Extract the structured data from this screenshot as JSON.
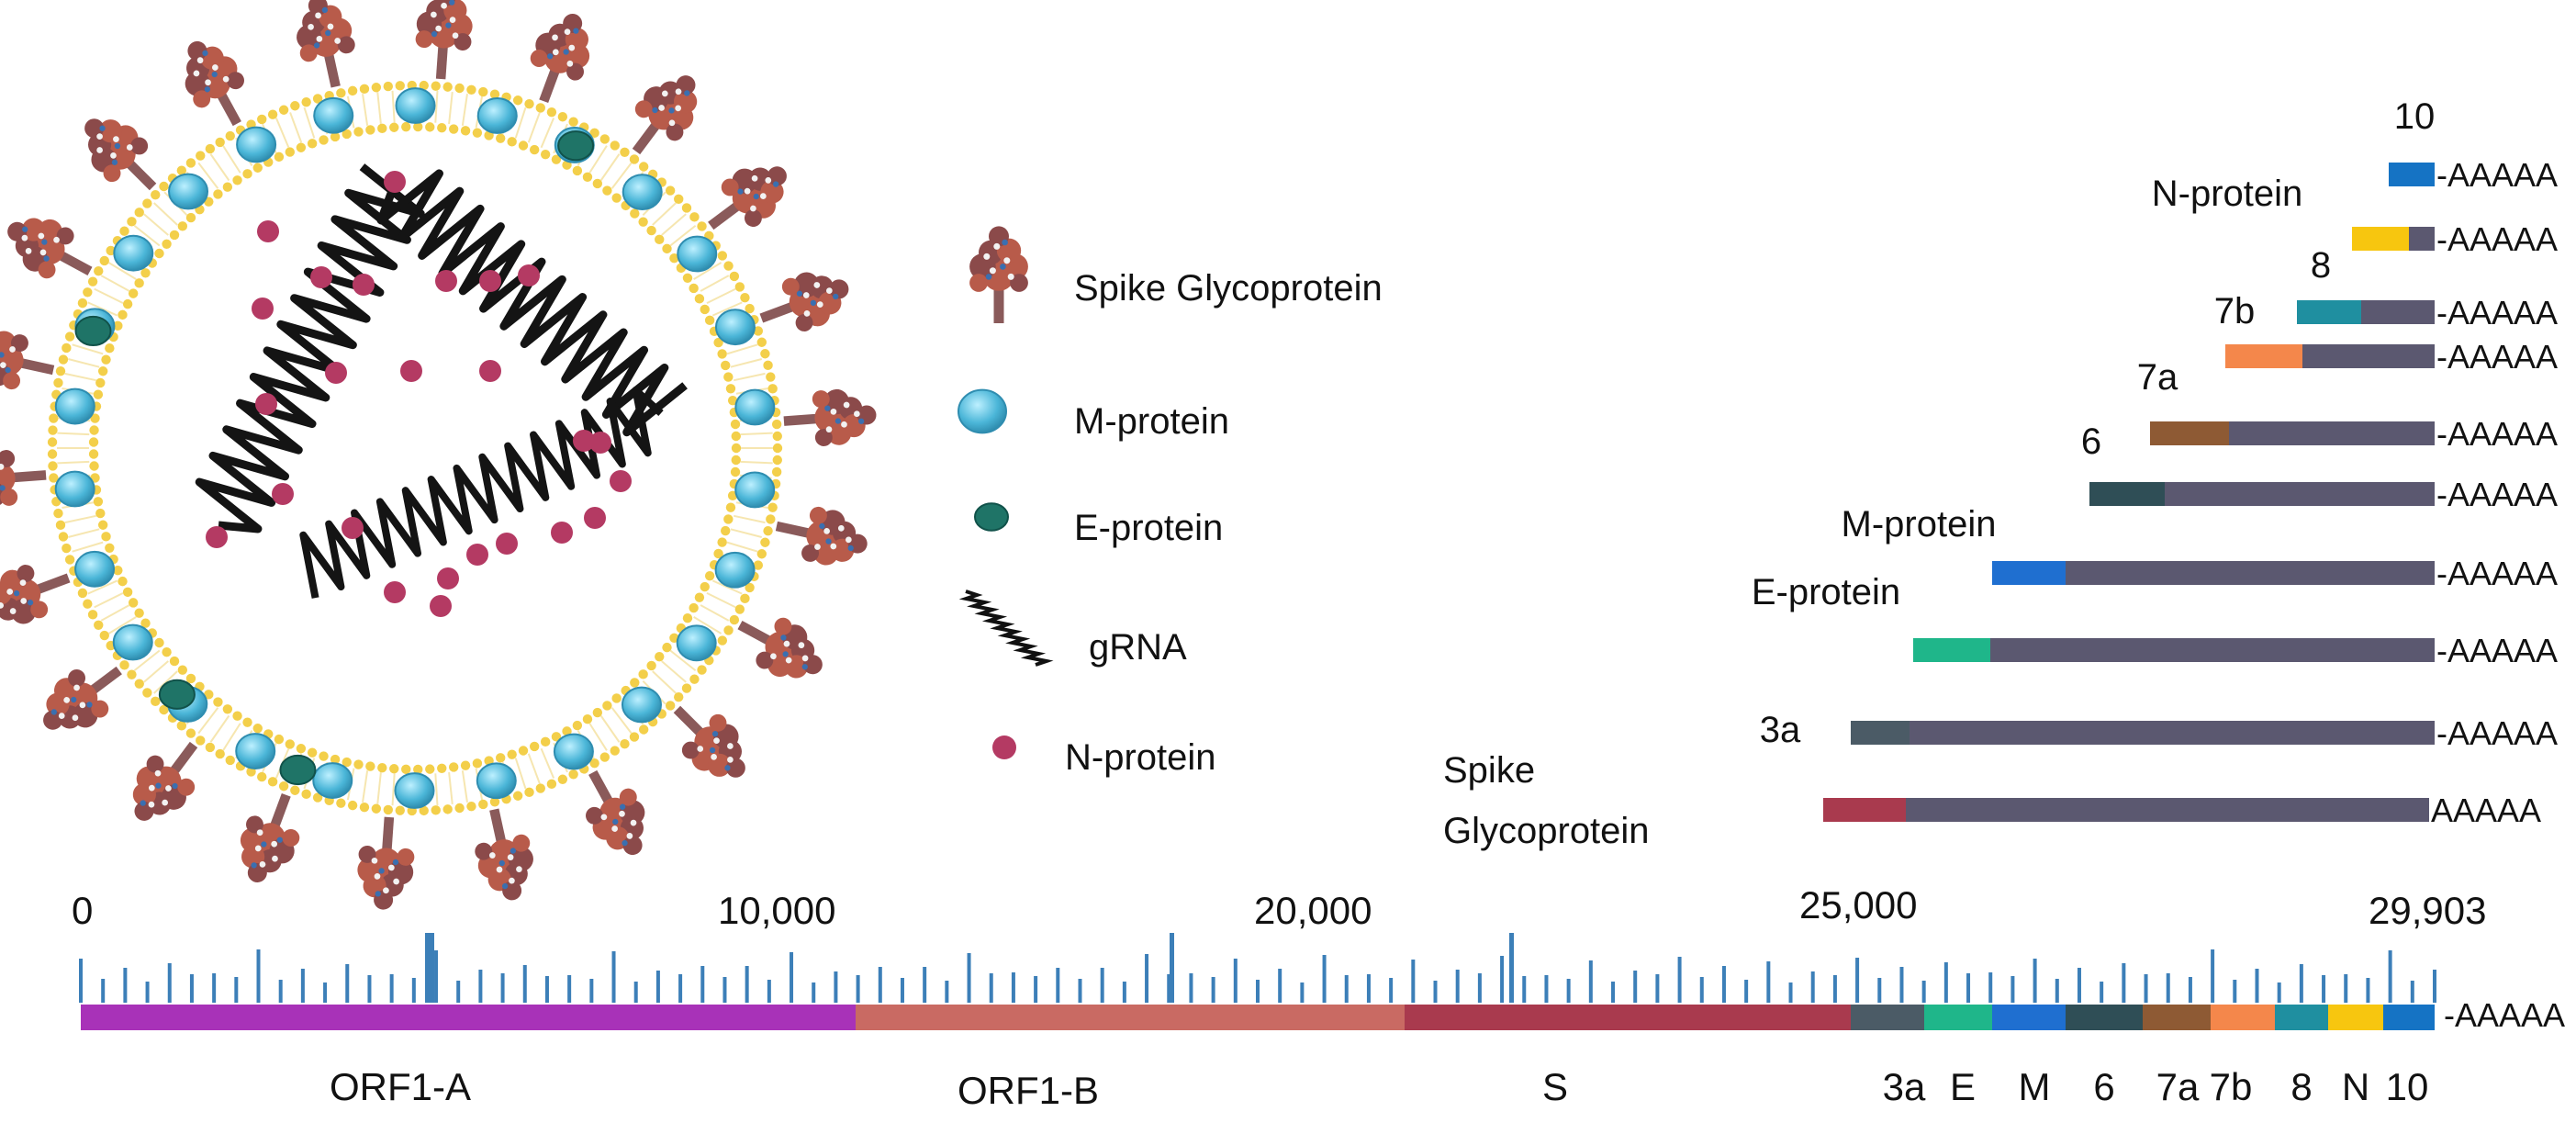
{
  "legend": {
    "items": [
      {
        "id": "spike",
        "label": "Spike Glycoprotein"
      },
      {
        "id": "mprotein",
        "label": "M-protein"
      },
      {
        "id": "eprotein",
        "label": "E-protein"
      },
      {
        "id": "grna",
        "label": "gRNA"
      },
      {
        "id": "nprotein",
        "label": "N-protein"
      }
    ]
  },
  "colors": {
    "orf1a": "#a832b8",
    "orf1b": "#c96a63",
    "s": "#a93a4e",
    "a3": "#4b5b66",
    "e": "#1fb68a",
    "m": "#1f6fd0",
    "six": "#2f4e56",
    "a7": "#8e5a34",
    "b7": "#f4874b",
    "eight": "#1f8fa0",
    "n": "#f7c60f",
    "ten": "#1573c4",
    "body": "#5b5870",
    "tick": "#3c7fb8",
    "spike_dot": "#b43a63",
    "membrane": "#f3cf4a",
    "m_protein": "#4bb6d8",
    "e_protein": "#1f7467",
    "rna": "#141414"
  },
  "genome": {
    "axis_labels": [
      {
        "value": 0,
        "text": "0"
      },
      {
        "value": 10000,
        "text": "10,000"
      },
      {
        "value": 20000,
        "text": "20,000"
      },
      {
        "value": 25000,
        "text": "25,000"
      },
      {
        "value": 29903,
        "text": "29,903"
      }
    ],
    "tail": "-AAAAA",
    "segments": [
      {
        "name": "ORF1-A",
        "color_key": "orf1a"
      },
      {
        "name": "ORF1-B",
        "color_key": "orf1b"
      },
      {
        "name": "S",
        "color_key": "s"
      },
      {
        "name": "3a",
        "color_key": "a3"
      },
      {
        "name": "E",
        "color_key": "e"
      },
      {
        "name": "M",
        "color_key": "m"
      },
      {
        "name": "6",
        "color_key": "six"
      },
      {
        "name": "7a",
        "color_key": "a7"
      },
      {
        "name": "7b",
        "color_key": "b7"
      },
      {
        "name": "8",
        "color_key": "eight"
      },
      {
        "name": "N",
        "color_key": "n"
      },
      {
        "name": "10",
        "color_key": "ten"
      }
    ]
  },
  "subgenomic": {
    "tail": "-AAAAA",
    "spike_tail": "AAAAA",
    "rows": [
      {
        "label": "10",
        "color_key": "ten"
      },
      {
        "label": "N-protein",
        "color_key": "n"
      },
      {
        "label": "8",
        "color_key": "eight"
      },
      {
        "label": "7b",
        "color_key": "b7"
      },
      {
        "label": "7a",
        "color_key": "a7"
      },
      {
        "label": "6",
        "color_key": "six"
      },
      {
        "label": "M-protein",
        "color_key": "m"
      },
      {
        "label": "E-protein",
        "color_key": "e"
      },
      {
        "label": "3a",
        "color_key": "a3"
      },
      {
        "label_lines": [
          "Spike",
          "Glycoprotein"
        ],
        "color_key": "s"
      }
    ]
  }
}
